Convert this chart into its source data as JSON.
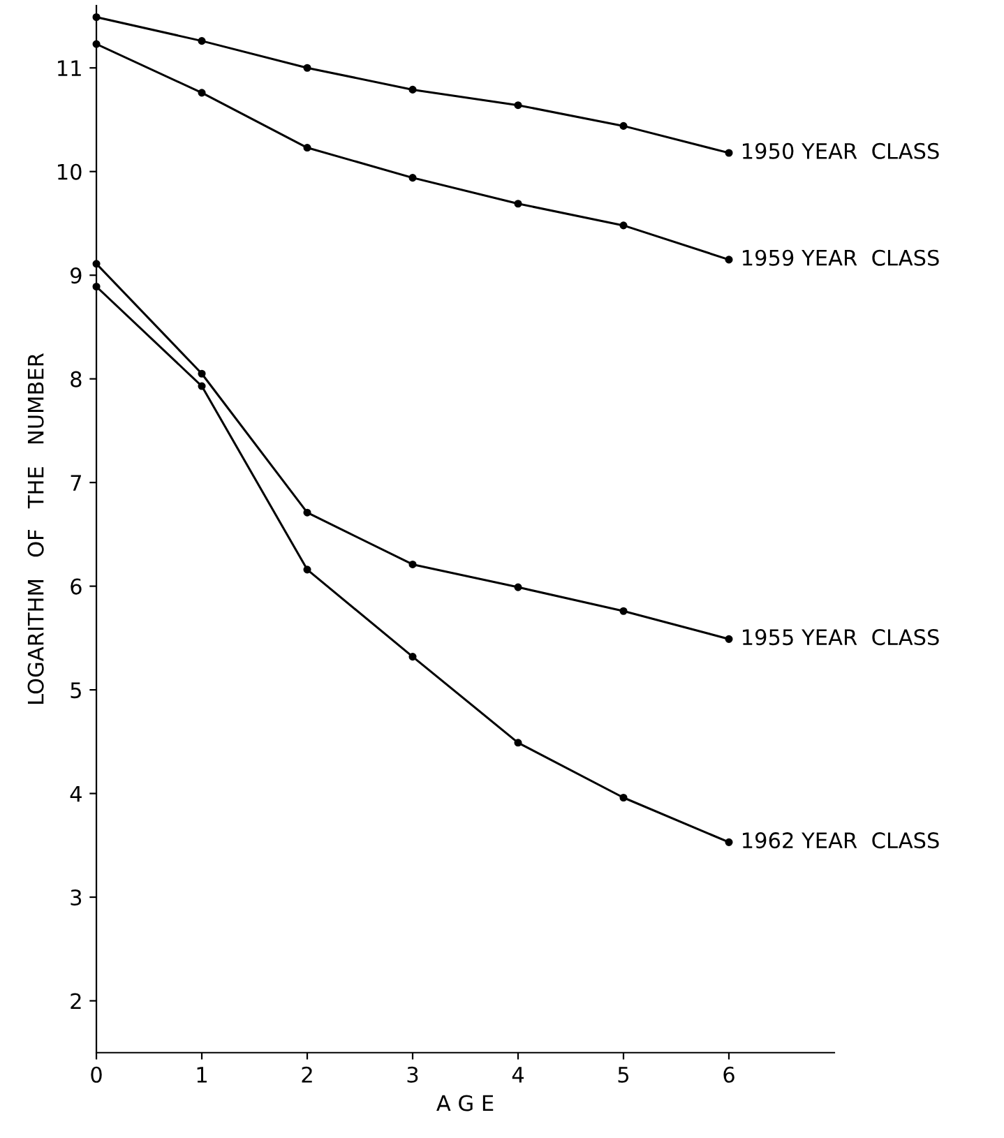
{
  "chart_data": {
    "type": "line",
    "xlabel": "A G E",
    "ylabel": "LOGARITHM   OF   THE   NUMBER",
    "x": [
      0,
      1,
      2,
      3,
      4,
      5,
      6
    ],
    "series": [
      {
        "name": "1950 YEAR  CLASS",
        "color": "#000000",
        "values": [
          11.49,
          11.26,
          11.0,
          10.79,
          10.64,
          10.44,
          10.18
        ]
      },
      {
        "name": "1959 YEAR  CLASS",
        "color": "#000000",
        "values": [
          11.23,
          10.76,
          10.23,
          9.94,
          9.69,
          9.48,
          9.15
        ]
      },
      {
        "name": "1955 YEAR  CLASS",
        "color": "#000000",
        "values": [
          9.11,
          8.05,
          6.71,
          6.21,
          5.99,
          5.76,
          5.49
        ]
      },
      {
        "name": "1962 YEAR  CLASS",
        "color": "#000000",
        "values": [
          8.89,
          7.93,
          6.16,
          5.32,
          4.49,
          3.96,
          3.53
        ]
      }
    ],
    "xlim": [
      0,
      7
    ],
    "ylim": [
      1.5,
      11.6
    ],
    "xticks": [
      0,
      1,
      2,
      3,
      4,
      5,
      6
    ],
    "yticks": [
      2,
      3,
      4,
      5,
      6,
      7,
      8,
      9,
      10,
      11
    ],
    "marker": "circle",
    "line_style": "solid",
    "grid": false,
    "legend": false
  }
}
